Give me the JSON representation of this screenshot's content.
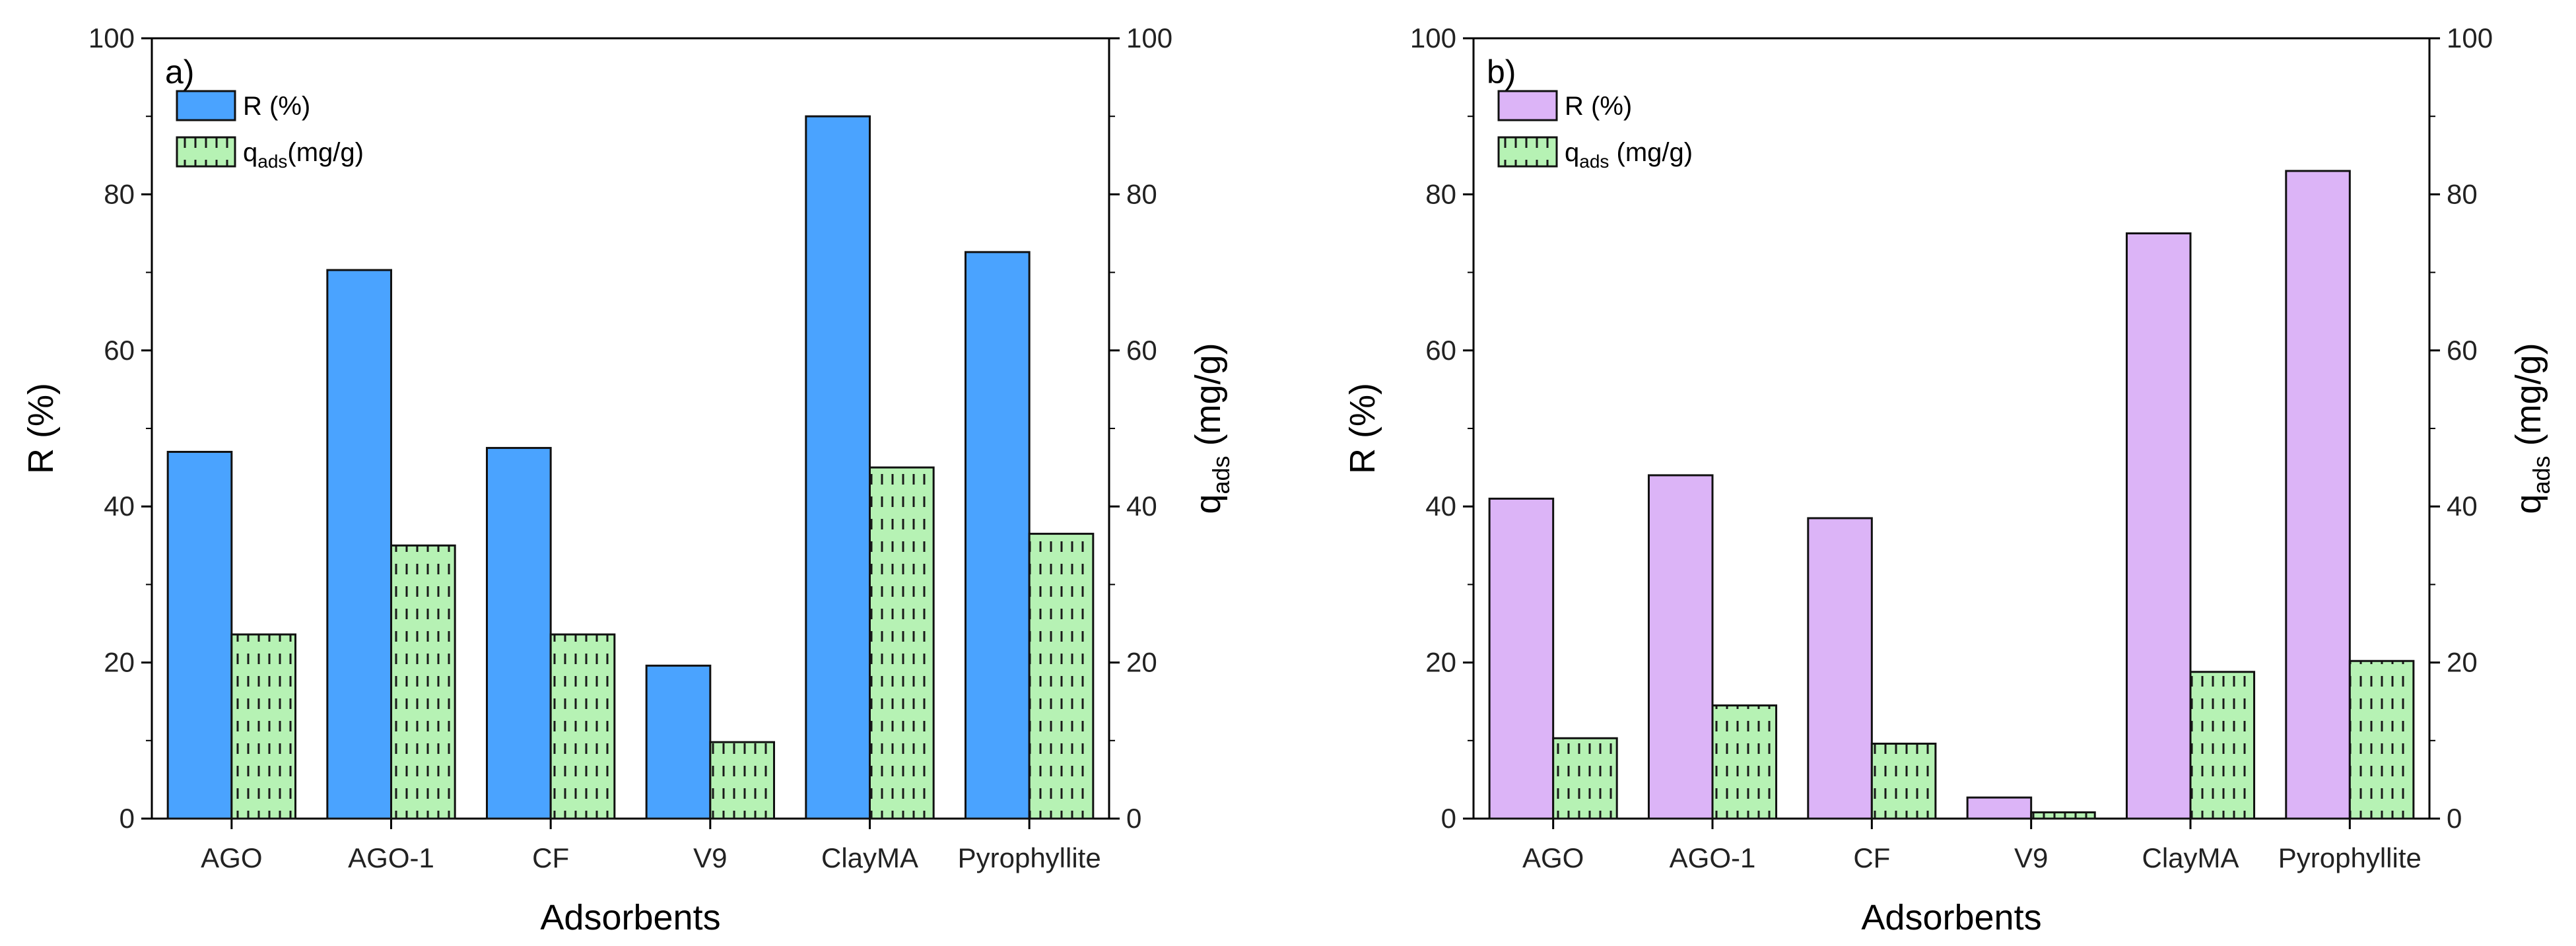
{
  "chart_data": [
    {
      "type": "bar",
      "panel_label": "a)",
      "categories": [
        "AGO",
        "AGO-1",
        "CF",
        "V9",
        "ClayMA",
        "Pyrophyllite"
      ],
      "series": [
        {
          "name": "R (%)",
          "axis": "left",
          "color": "#4aa3ff",
          "pattern": "solid",
          "values": [
            47,
            70.3,
            47.5,
            19.6,
            90,
            72.6
          ]
        },
        {
          "name": "qads(mg/g)",
          "axis": "right",
          "color": "#b6f2b4",
          "pattern": "dashes",
          "values": [
            23.6,
            35,
            23.6,
            9.8,
            45,
            36.5
          ]
        }
      ],
      "xlabel": "Adsorbents",
      "ylabel": "R (%)",
      "y2label": "qads (mg/g)",
      "ylim": [
        0,
        100
      ],
      "y2lim": [
        0,
        100
      ],
      "yticks": [
        "0",
        "20",
        "40",
        "60",
        "80",
        "100"
      ],
      "y2ticks": [
        "0",
        "20",
        "40",
        "60",
        "80",
        "100"
      ],
      "legend": {
        "placement": "top-left",
        "r_label": "R (%)",
        "q_main": "q",
        "q_sub": "ads",
        "q_unit": "(mg/g)"
      },
      "y2title": {
        "main": "q",
        "sub": "ads",
        "unit": " (mg/g)"
      }
    },
    {
      "type": "bar",
      "panel_label": "b)",
      "categories": [
        "AGO",
        "AGO-1",
        "CF",
        "V9",
        "ClayMA",
        "Pyrophyllite"
      ],
      "series": [
        {
          "name": "R (%)",
          "axis": "left",
          "color": "#dcb4f7",
          "pattern": "solid",
          "values": [
            41,
            44,
            38.5,
            2.7,
            75,
            83
          ]
        },
        {
          "name": "qads (mg/g)",
          "axis": "right",
          "color": "#b6f2b4",
          "pattern": "dashes",
          "values": [
            10.3,
            14.5,
            9.6,
            0.8,
            18.8,
            20.2
          ]
        }
      ],
      "xlabel": "Adsorbents",
      "ylabel": "R (%)",
      "y2label": "qads (mg/g)",
      "ylim": [
        0,
        100
      ],
      "y2lim": [
        0,
        100
      ],
      "yticks": [
        "0",
        "20",
        "40",
        "60",
        "80",
        "100"
      ],
      "y2ticks": [
        "0",
        "20",
        "40",
        "60",
        "80",
        "100"
      ],
      "legend": {
        "placement": "top-left",
        "r_label": "R (%)",
        "q_main": "q",
        "q_sub": "ads",
        "q_unit": " (mg/g)"
      },
      "y2title": {
        "main": "q",
        "sub": "ads",
        "unit": " (mg/g)"
      }
    }
  ]
}
